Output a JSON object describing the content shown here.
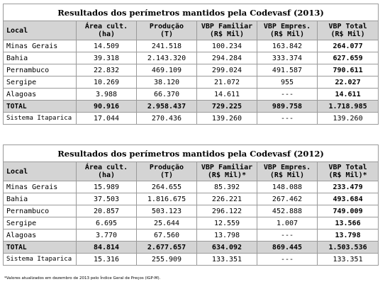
{
  "table_2013": {
    "title": "Resultados dos perímetros mantidos pela Codevasf (2013)",
    "headers": [
      "Local",
      "Área cult.\n(ha)",
      "Produção\n(T)",
      "VBP Familiar\n(R$ Mil)",
      "VBP Empres.\n(R$ Mil)",
      "VBP Total\n(R$ Mil)"
    ],
    "rows": [
      [
        "Minas Gerais",
        "14.509",
        "241.518",
        "100.234",
        "163.842",
        "264.077"
      ],
      [
        "Bahia",
        "39.318",
        "2.143.320",
        "294.284",
        "333.374",
        "627.659"
      ],
      [
        "Pernambuco",
        "22.832",
        "469.109",
        "299.024",
        "491.587",
        "790.611"
      ],
      [
        "Sergipe",
        "10.269",
        "38.120",
        "21.072",
        "955",
        "22.027"
      ],
      [
        "Alagoas",
        "3.988",
        "66.370",
        "14.611",
        "---",
        "14.611"
      ]
    ],
    "total": [
      "TOTAL",
      "90.916",
      "2.958.437",
      "729.225",
      "989.758",
      "1.718.985"
    ],
    "extra": [
      "Sistema Itaparica",
      "17.044",
      "270.436",
      "139.260",
      "---",
      "139.260"
    ]
  },
  "table_2012": {
    "title": "Resultados dos perímetros mantidos pela Codevasf (2012)",
    "headers": [
      "Local",
      "Área cult.\n(ha)",
      "Produção\n(T)",
      "VBP Familiar\n(R$ Mil)*",
      "VBP Empres.\n(R$ Mil)",
      "VBP Total\n(R$ Mil)*"
    ],
    "rows": [
      [
        "Minas Gerais",
        "15.989",
        "264.655",
        "85.392",
        "148.088",
        "233.479"
      ],
      [
        "Bahia",
        "37.503",
        "1.816.675",
        "226.221",
        "267.462",
        "493.684"
      ],
      [
        "Pernambuco",
        "20.857",
        "503.123",
        "296.122",
        "452.888",
        "749.009"
      ],
      [
        "Sergipe",
        "6.695",
        "25.644",
        "12.559",
        "1.007",
        "13.566"
      ],
      [
        "Alagoas",
        "3.770",
        "67.560",
        "13.798",
        "---",
        "13.798"
      ]
    ],
    "total": [
      "TOTAL",
      "84.814",
      "2.677.657",
      "634.092",
      "869.445",
      "1.503.536"
    ],
    "extra": [
      "Sistema Itaparica",
      "15.316",
      "255.909",
      "133.351",
      "---",
      "133.351"
    ]
  },
  "footnote": "*Valores atualizados em dezembro de 2013 pelo Índice Geral de Preços (IGP-M)."
}
